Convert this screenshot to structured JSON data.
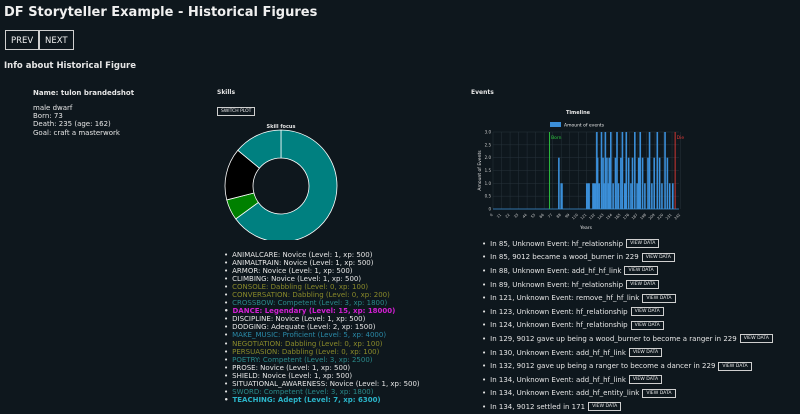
{
  "page": {
    "title": "DF Storyteller Example - Historical Figures",
    "prev_label": "PREV",
    "next_label": "NEXT",
    "subheading": "Info about Historical Figure"
  },
  "figure": {
    "name": "Name: tulon brandedshot",
    "bio": [
      "male dwarf",
      "Born: 73",
      "Death: 235 (age: 162)",
      "Goal: craft a masterwork"
    ]
  },
  "skills_panel": {
    "heading": "Skills",
    "switch_label": "SWITCH PLOT",
    "chart_title": "Skill focus"
  },
  "events_panel": {
    "heading": "Events",
    "view_label": "VIEW DATA"
  },
  "skills": [
    {
      "text": "ANIMALCARE: Novice (Level: 1, xp: 500)",
      "color": "#e6e6e6"
    },
    {
      "text": "ANIMALTRAIN: Novice (Level: 1, xp: 500)",
      "color": "#e6e6e6"
    },
    {
      "text": "ARMOR: Novice (Level: 1, xp: 500)",
      "color": "#e6e6e6"
    },
    {
      "text": "CLIMBING: Novice (Level: 1, xp: 500)",
      "color": "#e6e6e6"
    },
    {
      "text": "CONSOLE: Dabbling (Level: 0, xp: 100)",
      "color": "#8a8a2a"
    },
    {
      "text": "CONVERSATION: Dabbling (Level: 0, xp: 200)",
      "color": "#8a8a2a"
    },
    {
      "text": "CROSSBOW: Competent (Level: 3, xp: 1800)",
      "color": "#2a8a8a"
    },
    {
      "text": "DANCE: Legendary (Level: 15, xp: 18000)",
      "color": "#d21fd2",
      "bold": true
    },
    {
      "text": "DISCIPLINE: Novice (Level: 1, xp: 500)",
      "color": "#e6e6e6"
    },
    {
      "text": "DODGING: Adequate (Level: 2, xp: 1500)",
      "color": "#e6e6e6"
    },
    {
      "text": "MAKE_MUSIC: Proficient (Level: 5, xp: 4000)",
      "color": "#2a8aa8"
    },
    {
      "text": "NEGOTIATION: Dabbling (Level: 0, xp: 100)",
      "color": "#8a8a2a"
    },
    {
      "text": "PERSUASION: Dabbling (Level: 0, xp: 100)",
      "color": "#8a8a2a"
    },
    {
      "text": "POETRY: Competent (Level: 3, xp: 2500)",
      "color": "#2a8a8a"
    },
    {
      "text": "PROSE: Novice (Level: 1, xp: 500)",
      "color": "#e6e6e6"
    },
    {
      "text": "SHIELD: Novice (Level: 1, xp: 500)",
      "color": "#e6e6e6"
    },
    {
      "text": "SITUATIONAL_AWARENESS: Novice (Level: 1, xp: 500)",
      "color": "#e6e6e6"
    },
    {
      "text": "SWORD: Competent (Level: 3, xp: 1800)",
      "color": "#2a8a8a"
    },
    {
      "text": "TEACHING: Adept (Level: 7, xp: 6300)",
      "color": "#2ab4c8",
      "bold": true
    }
  ],
  "events": [
    "In 85, Unknown Event: hf_relationship",
    "In 85, 9012 became a wood_burner in 229",
    "In 88, Unknown Event: add_hf_hf_link",
    "In 89, Unknown Event: hf_relationship",
    "In 121, Unknown Event: remove_hf_hf_link",
    "In 123, Unknown Event: hf_relationship",
    "In 124, Unknown Event: hf_relationship",
    "In 129, 9012 gave up being a wood_burner to become a ranger in 229",
    "In 130, Unknown Event: add_hf_hf_link",
    "In 132, 9012 gave up being a ranger to become a dancer in 229",
    "In 134, Unknown Event: add_hf_hf_link",
    "In 134, Unknown Event: add_hf_entity_link",
    "In 134, 9012 settled in 171"
  ],
  "chart_data": [
    {
      "type": "pie",
      "title": "Skill focus",
      "slices": [
        {
          "label": "teal",
          "value": 65,
          "color": "#008080"
        },
        {
          "label": "green",
          "value": 6,
          "color": "#008000"
        },
        {
          "label": "black",
          "value": 15,
          "color": "#000000"
        },
        {
          "label": "teal-2",
          "value": 14,
          "color": "#008080"
        }
      ]
    },
    {
      "type": "bar",
      "title": "Timeline",
      "legend": "Amount of events",
      "xlabel": "Years",
      "ylabel": "Amount of Events",
      "ylim": [
        0,
        3.0
      ],
      "xlim": [
        0,
        240
      ],
      "yticks": [
        "0",
        "0.5",
        "1.0",
        "1.5",
        "2.0",
        "2.5",
        "3.0"
      ],
      "xticks": [
        0,
        11,
        22,
        33,
        44,
        55,
        66,
        77,
        88,
        99,
        110,
        121,
        132,
        143,
        154,
        165,
        176,
        187,
        198,
        209,
        220,
        231,
        242
      ],
      "markers": [
        {
          "label": "Born",
          "x": 73,
          "color": "#2ecc40"
        },
        {
          "label": "Die",
          "x": 235,
          "color": "#e53935"
        }
      ],
      "bar_color": "#3b8fd9",
      "x": [
        85,
        88,
        89,
        121,
        123,
        124,
        129,
        130,
        132,
        134,
        135,
        137,
        140,
        142,
        143,
        145,
        147,
        149,
        150,
        152,
        155,
        158,
        160,
        162,
        165,
        167,
        170,
        172,
        175,
        178,
        180,
        183,
        186,
        188,
        190,
        193,
        196,
        200,
        202,
        205,
        208,
        212,
        215,
        218,
        222,
        225,
        228,
        232
      ],
      "values": [
        2,
        1,
        1,
        1,
        1,
        1,
        1,
        1,
        1,
        3,
        2,
        1,
        3,
        2,
        1,
        3,
        2,
        1,
        2,
        3,
        1,
        2,
        3,
        1,
        2,
        3,
        1,
        3,
        2,
        1,
        2,
        3,
        1,
        2,
        3,
        2,
        1,
        2,
        3,
        1,
        2,
        3,
        2,
        1,
        3,
        2,
        1,
        1
      ]
    }
  ]
}
